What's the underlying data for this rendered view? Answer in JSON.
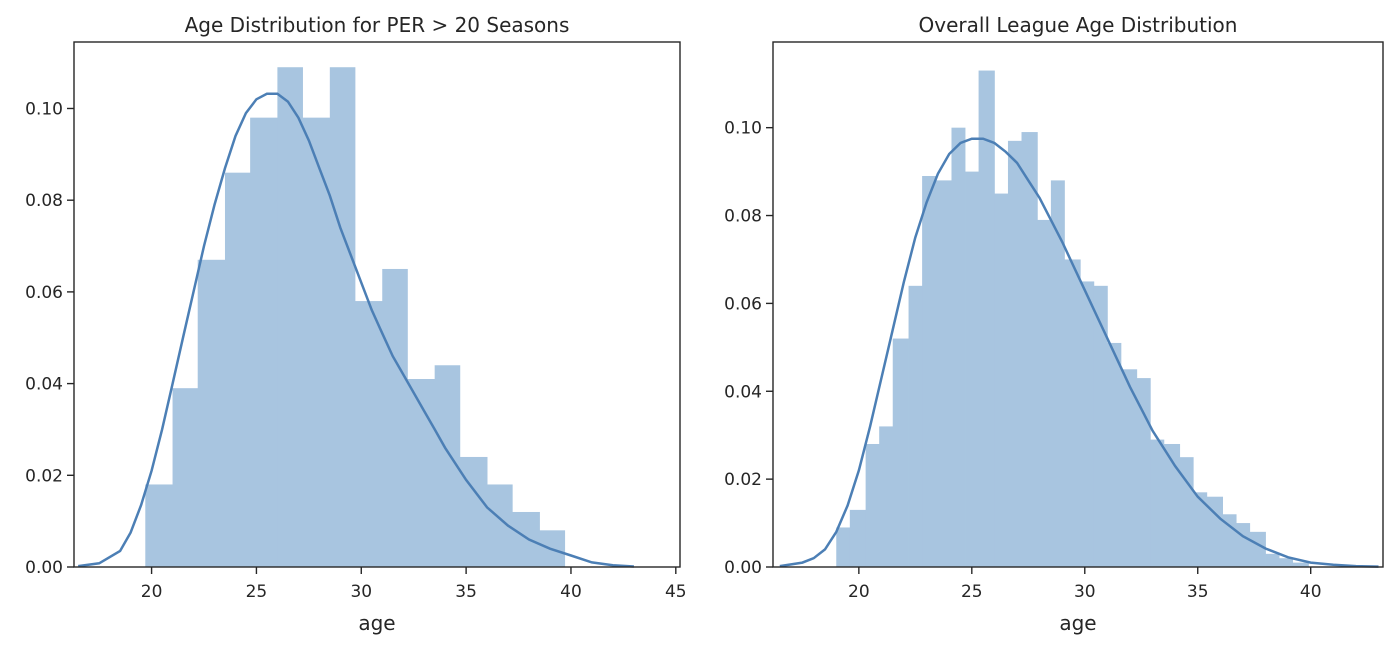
{
  "chart_data": [
    {
      "type": "bar",
      "title": "Age Distribution for PER > 20 Seasons",
      "xlabel": "age",
      "ylabel": "",
      "xlim": [
        16.3,
        45.2
      ],
      "ylim": [
        0,
        0.1145
      ],
      "xticks": [
        20,
        25,
        30,
        35,
        40,
        45
      ],
      "yticks": [
        0.0,
        0.02,
        0.04,
        0.06,
        0.08,
        0.1
      ],
      "ytick_labels": [
        "0.00",
        "0.02",
        "0.04",
        "0.06",
        "0.08",
        "0.10"
      ],
      "hist": {
        "bin_edges": [
          19.7,
          21.0,
          22.2,
          23.5,
          24.7,
          26.0,
          27.2,
          28.5,
          29.7,
          31.0,
          32.2,
          33.5,
          34.7,
          36.0,
          37.2,
          38.5,
          39.7
        ],
        "density": [
          0.018,
          0.039,
          0.067,
          0.086,
          0.098,
          0.109,
          0.098,
          0.109,
          0.058,
          0.065,
          0.041,
          0.044,
          0.024,
          0.018,
          0.012,
          0.008,
          0.005
        ]
      },
      "kde": {
        "x": [
          16.5,
          17.5,
          18.5,
          19.0,
          19.5,
          20.0,
          20.5,
          21.0,
          21.5,
          22.0,
          22.5,
          23.0,
          23.5,
          24.0,
          24.5,
          25.0,
          25.5,
          26.0,
          26.5,
          27.0,
          27.5,
          28.0,
          28.5,
          29.0,
          29.5,
          30.0,
          30.5,
          31.0,
          31.5,
          32.0,
          32.5,
          33.0,
          33.5,
          34.0,
          35.0,
          36.0,
          37.0,
          38.0,
          39.0,
          40.0,
          41.0,
          42.0,
          43.0
        ],
        "y": [
          0.0002,
          0.0008,
          0.0035,
          0.0075,
          0.0135,
          0.021,
          0.03,
          0.04,
          0.05,
          0.06,
          0.07,
          0.079,
          0.087,
          0.094,
          0.099,
          0.102,
          0.1032,
          0.1032,
          0.1015,
          0.098,
          0.093,
          0.087,
          0.081,
          0.074,
          0.068,
          0.062,
          0.056,
          0.051,
          0.046,
          0.042,
          0.038,
          0.034,
          0.03,
          0.026,
          0.019,
          0.013,
          0.009,
          0.006,
          0.004,
          0.0025,
          0.001,
          0.0004,
          0.0001
        ]
      }
    },
    {
      "type": "bar",
      "title": "Overall League Age Distribution",
      "xlabel": "age",
      "ylabel": "",
      "xlim": [
        16.2,
        43.2
      ],
      "ylim": [
        0,
        0.1195
      ],
      "xticks": [
        20,
        25,
        30,
        35,
        40
      ],
      "yticks": [
        0.0,
        0.02,
        0.04,
        0.06,
        0.08,
        0.1
      ],
      "ytick_labels": [
        "0.00",
        "0.02",
        "0.04",
        "0.06",
        "0.08",
        "0.10"
      ],
      "hist": {
        "bin_edges": [
          19.0,
          19.6,
          20.3,
          20.9,
          21.5,
          22.2,
          22.8,
          23.4,
          24.1,
          24.7,
          25.3,
          26.0,
          26.6,
          27.2,
          27.9,
          28.5,
          29.1,
          29.8,
          30.4,
          31.0,
          31.6,
          32.3,
          32.9,
          33.5,
          34.2,
          34.8,
          35.4,
          36.1,
          36.7,
          37.3,
          38.0,
          38.6,
          39.2,
          39.9
        ],
        "density": [
          0.009,
          0.013,
          0.028,
          0.032,
          0.052,
          0.064,
          0.089,
          0.088,
          0.1,
          0.09,
          0.113,
          0.085,
          0.097,
          0.099,
          0.079,
          0.088,
          0.07,
          0.065,
          0.064,
          0.051,
          0.045,
          0.043,
          0.029,
          0.028,
          0.025,
          0.017,
          0.016,
          0.012,
          0.01,
          0.008,
          0.003,
          0.002,
          0.001
        ]
      },
      "kde": {
        "x": [
          16.5,
          17.5,
          18.0,
          18.5,
          19.0,
          19.5,
          20.0,
          20.5,
          21.0,
          21.5,
          22.0,
          22.5,
          23.0,
          23.5,
          24.0,
          24.5,
          25.0,
          25.5,
          26.0,
          26.5,
          27.0,
          27.5,
          28.0,
          28.5,
          29.0,
          29.5,
          30.0,
          30.5,
          31.0,
          31.5,
          32.0,
          32.5,
          33.0,
          33.5,
          34.0,
          35.0,
          36.0,
          37.0,
          38.0,
          39.0,
          40.0,
          41.0,
          42.0,
          43.0
        ],
        "y": [
          0.0002,
          0.001,
          0.002,
          0.004,
          0.008,
          0.014,
          0.022,
          0.032,
          0.043,
          0.054,
          0.065,
          0.075,
          0.083,
          0.0895,
          0.094,
          0.0965,
          0.0975,
          0.0975,
          0.0965,
          0.0945,
          0.092,
          0.088,
          0.084,
          0.079,
          0.074,
          0.0685,
          0.063,
          0.0575,
          0.052,
          0.0465,
          0.041,
          0.036,
          0.031,
          0.027,
          0.023,
          0.016,
          0.011,
          0.007,
          0.0042,
          0.0022,
          0.001,
          0.0005,
          0.0002,
          0.0001
        ]
      }
    }
  ]
}
